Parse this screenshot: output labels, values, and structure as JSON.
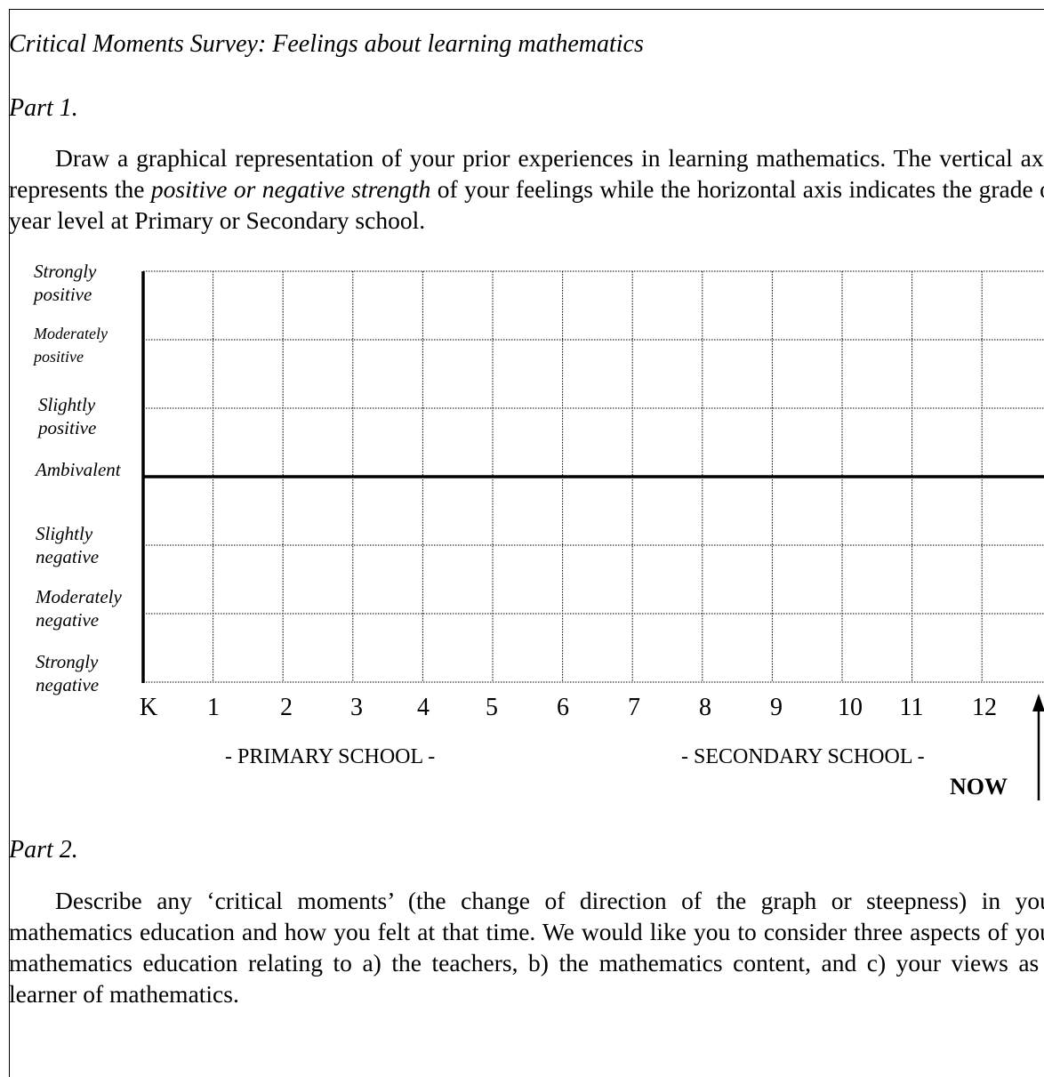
{
  "title": "Critical Moments Survey: Feelings about learning mathematics",
  "part1": {
    "heading": "Part 1.",
    "instructions": [
      "Draw a graphical representation of your prior experiences in learning mathematics. The vertical axis represents the ",
      "positive or negative strength",
      " of your feelings while the horizontal axis indicates the grade or year level at Primary or Secondary school."
    ]
  },
  "graph": {
    "y_labels": [
      "Strongly\npositive",
      "Moderately\npositive",
      "Slightly\npositive",
      "Ambivalent",
      "Slightly\nnegative",
      "Moderately\nnegative",
      "Strongly\nnegative"
    ],
    "x_labels": [
      "K",
      "1",
      "2",
      "3",
      "4",
      "5",
      "6",
      "7",
      "8",
      "9",
      "10",
      "11",
      "12"
    ],
    "sections": [
      "- PRIMARY SCHOOL -",
      "- SECONDARY SCHOOL -"
    ],
    "now": "NOW"
  },
  "part2": {
    "heading": "Part 2.",
    "text": "Describe any ‘critical moments’ (the change of direction of the graph or steepness) in your mathematics education and how you felt at that time. We would like you to consider three aspects of your mathematics education relating to a) the teachers, b) the mathematics content, and c) your views as a learner of mathematics."
  }
}
